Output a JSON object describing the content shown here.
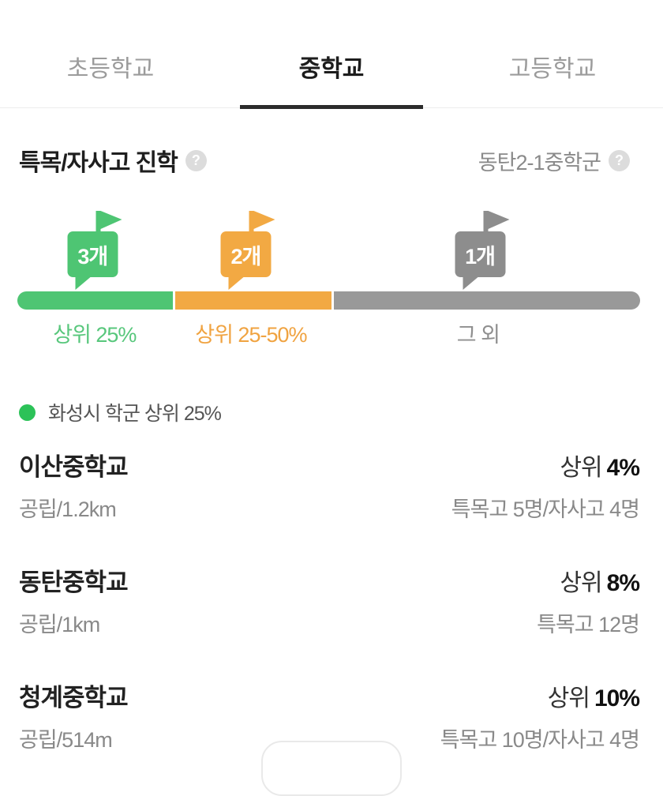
{
  "tabs": {
    "items": [
      {
        "label": "초등학교",
        "active": false
      },
      {
        "label": "중학교",
        "active": true
      },
      {
        "label": "고등학교",
        "active": false
      }
    ]
  },
  "section": {
    "title": "특목/자사고 진학",
    "help_icon": "?",
    "district": "동탄2-1중학군",
    "district_help_icon": "?"
  },
  "progress": {
    "flags": [
      {
        "count": "3개",
        "tier": "상위 25%",
        "color": "#4ec573"
      },
      {
        "count": "2개",
        "tier": "상위 25-50%",
        "color": "#f2a943"
      },
      {
        "count": "1개",
        "tier": "그 외",
        "color": "#8d8d8d"
      }
    ],
    "segments": [
      {
        "label": "상위 25%",
        "width_pct": 25,
        "color": "#4ec573",
        "text_color": "#58c77c"
      },
      {
        "label": "상위 25-50%",
        "width_pct": 25,
        "color": "#f2a943",
        "text_color": "#f0a341"
      },
      {
        "label": "그 외",
        "width_pct": 50,
        "color": "#999999",
        "text_color": "#8f8f8f"
      }
    ]
  },
  "legend": {
    "dot_color": "#2cc258",
    "text": "화성시 학군 상위 25%"
  },
  "schools": [
    {
      "name": "이산중학교",
      "info": "공립/1.2km",
      "rank_prefix": "상위",
      "rank_value": "4%",
      "detail": "특목고 5명/자사고 4명"
    },
    {
      "name": "동탄중학교",
      "info": "공립/1km",
      "rank_prefix": "상위",
      "rank_value": "8%",
      "detail": "특목고 12명"
    },
    {
      "name": "청계중학교",
      "info": "공립/514m",
      "rank_prefix": "상위",
      "rank_value": "10%",
      "detail": "특목고 10명/자사고 4명"
    }
  ]
}
